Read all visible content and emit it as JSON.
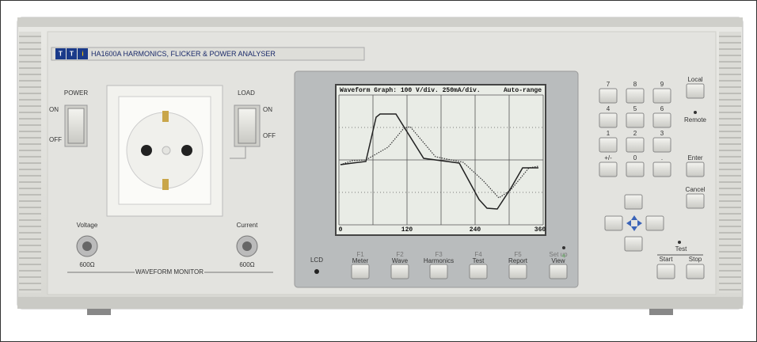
{
  "brand": {
    "logo": [
      "T",
      "T",
      "i"
    ],
    "title": "HA1600A HARMONICS, FLICKER & POWER ANALYSER"
  },
  "left_panel": {
    "power": {
      "label": "POWER",
      "on": "ON",
      "off": "OFF"
    },
    "load": {
      "label": "LOAD",
      "on": "ON",
      "off": "OFF"
    },
    "voltage": {
      "label": "Voltage",
      "impedance": "600Ω"
    },
    "current": {
      "label": "Current",
      "impedance": "600Ω"
    },
    "monitor": "WAVEFORM MONITOR"
  },
  "display": {
    "header": "Waveform Graph: 100 V/div. 250mA/div.",
    "range": "Auto-range",
    "x_labels": [
      "0",
      "120",
      "240",
      "360"
    ],
    "lcd": "LCD"
  },
  "function_keys": [
    {
      "key": "F1",
      "label": "Meter"
    },
    {
      "key": "F2",
      "label": "Wave"
    },
    {
      "key": "F3",
      "label": "Harmonics"
    },
    {
      "key": "F4",
      "label": "Test"
    },
    {
      "key": "F5",
      "label": "Report"
    },
    {
      "key": "Set up",
      "label": "View"
    }
  ],
  "keypad": {
    "keys": [
      "7",
      "8",
      "9",
      "4",
      "5",
      "6",
      "1",
      "2",
      "3",
      "+/-",
      "0",
      "."
    ],
    "local": "Local",
    "remote": "Remote",
    "enter": "Enter",
    "cancel": "Cancel",
    "test": "Test",
    "start": "Start",
    "stop": "Stop"
  }
}
